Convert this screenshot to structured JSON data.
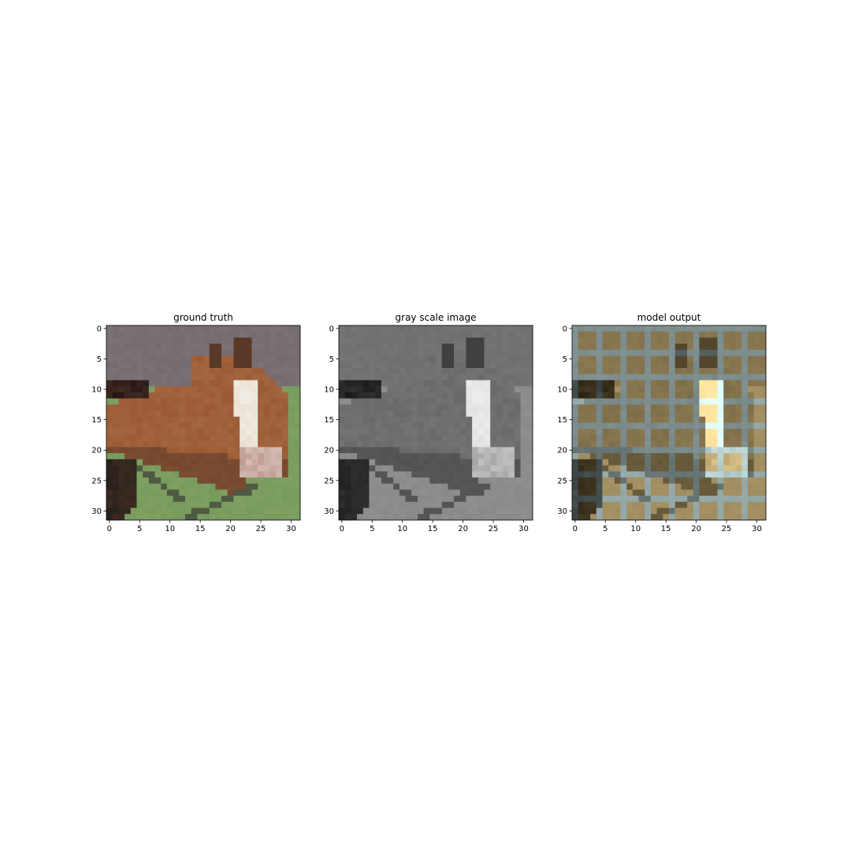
{
  "panels": [
    {
      "title": "ground truth",
      "mode": "color",
      "xticks": [
        "0",
        "5",
        "10",
        "15",
        "20",
        "25",
        "30"
      ],
      "yticks": [
        "0",
        "5",
        "10",
        "15",
        "20",
        "25",
        "30"
      ]
    },
    {
      "title": "gray scale image",
      "mode": "gray",
      "xticks": [
        "0",
        "5",
        "10",
        "15",
        "20",
        "25",
        "30"
      ],
      "yticks": [
        "0",
        "5",
        "10",
        "15",
        "20",
        "25",
        "30"
      ]
    },
    {
      "title": "model output",
      "mode": "model",
      "xticks": [
        "0",
        "5",
        "10",
        "15",
        "20",
        "25",
        "30"
      ],
      "yticks": [
        "0",
        "5",
        "10",
        "15",
        "20",
        "25",
        "30"
      ]
    }
  ],
  "image": {
    "description_subject": "horse head",
    "resolution": [
      32,
      32
    ],
    "palette": {
      "sky": "#7b7276",
      "grass": "#7fa062",
      "horse_brown": "#9a5a34",
      "horse_dark": "#3e2a22",
      "blaze_white": "#f0ece4",
      "fence_dark": "#4f5a42"
    }
  }
}
